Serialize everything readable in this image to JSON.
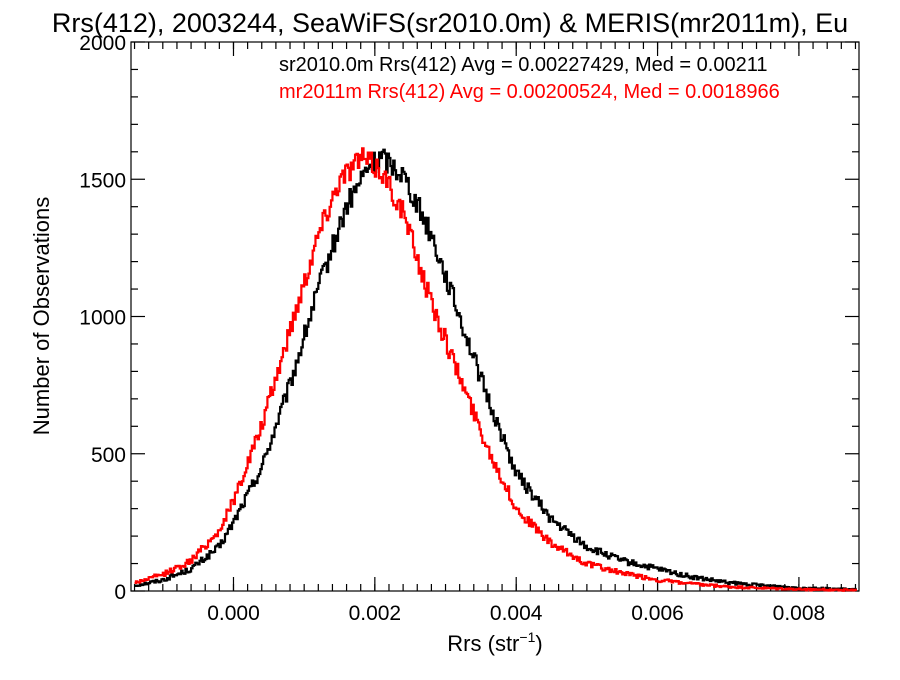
{
  "chart_data": {
    "type": "line",
    "title": "Rrs(412), 2003244, SeaWiFS(sr2010.0m) & MERIS(mr2011m), Eu",
    "xlabel": "Rrs (str",
    "xlabel_sup": "−1",
    "xlabel_close": ")",
    "ylabel": "Number of Observations",
    "xlim": [
      -0.00145,
      0.00885
    ],
    "ylim": [
      0,
      2000
    ],
    "x_ticks": [
      0.0,
      0.002,
      0.004,
      0.006,
      0.008
    ],
    "x_tick_labels": [
      "0.000",
      "0.002",
      "0.004",
      "0.006",
      "0.008"
    ],
    "y_ticks": [
      0,
      500,
      1000,
      1500,
      2000
    ],
    "y_tick_labels": [
      "0",
      "500",
      "1000",
      "1500",
      "2000"
    ],
    "grid": false,
    "legend_position": "top-right",
    "legend": [
      {
        "text": "sr2010.0m Rrs(412) Avg = 0.00227429, Med = 0.00211",
        "color": "#000000"
      },
      {
        "text": "mr2011m Rrs(412) Avg = 0.00200524, Med = 0.0018966",
        "color": "#ff0000"
      }
    ],
    "series": [
      {
        "color": "#000000",
        "points": [
          [
            -0.0014,
            20
          ],
          [
            -0.001,
            40
          ],
          [
            -0.0006,
            80
          ],
          [
            -0.0002,
            160
          ],
          [
            0.0,
            250
          ],
          [
            0.0004,
            450
          ],
          [
            0.0008,
            750
          ],
          [
            0.0012,
            1100
          ],
          [
            0.0016,
            1400
          ],
          [
            0.0019,
            1540
          ],
          [
            0.0021,
            1580
          ],
          [
            0.0024,
            1520
          ],
          [
            0.0028,
            1300
          ],
          [
            0.0032,
            1000
          ],
          [
            0.0036,
            700
          ],
          [
            0.004,
            430
          ],
          [
            0.0045,
            260
          ],
          [
            0.005,
            160
          ],
          [
            0.0055,
            110
          ],
          [
            0.006,
            80
          ],
          [
            0.0065,
            50
          ],
          [
            0.007,
            30
          ],
          [
            0.0075,
            20
          ],
          [
            0.008,
            12
          ],
          [
            0.0088,
            5
          ]
        ]
      },
      {
        "color": "#ff0000",
        "points": [
          [
            -0.0014,
            30
          ],
          [
            -0.001,
            60
          ],
          [
            -0.0006,
            110
          ],
          [
            -0.0002,
            220
          ],
          [
            0.0,
            330
          ],
          [
            0.0004,
            600
          ],
          [
            0.0008,
            950
          ],
          [
            0.0012,
            1300
          ],
          [
            0.0015,
            1500
          ],
          [
            0.0018,
            1580
          ],
          [
            0.0021,
            1530
          ],
          [
            0.0024,
            1380
          ],
          [
            0.0028,
            1050
          ],
          [
            0.0032,
            780
          ],
          [
            0.0036,
            520
          ],
          [
            0.004,
            300
          ],
          [
            0.0045,
            170
          ],
          [
            0.005,
            100
          ],
          [
            0.0055,
            65
          ],
          [
            0.006,
            40
          ],
          [
            0.0065,
            25
          ],
          [
            0.007,
            15
          ],
          [
            0.0075,
            10
          ],
          [
            0.008,
            6
          ],
          [
            0.0088,
            3
          ]
        ]
      }
    ]
  }
}
